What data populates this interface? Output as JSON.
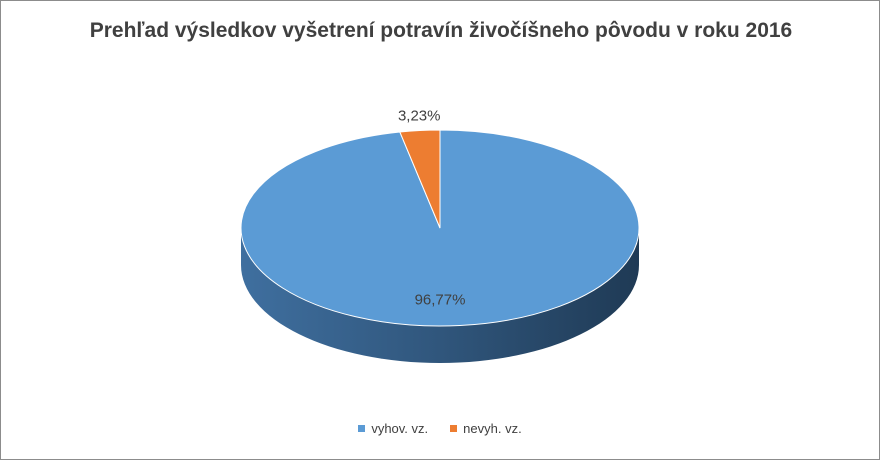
{
  "chart_data": {
    "type": "pie",
    "title": "Prehľad výsledkov vyšetrení potravín živočíšneho pôvodu v roku 2016",
    "categories": [
      "vyhov. vz.",
      "nevyh. vz."
    ],
    "values": [
      96.77,
      3.23
    ],
    "data_labels": [
      "96,77%",
      "3,23%"
    ],
    "colors": [
      "#5b9bd5",
      "#ed7d31"
    ],
    "legend_position": "bottom",
    "style": "3d"
  }
}
